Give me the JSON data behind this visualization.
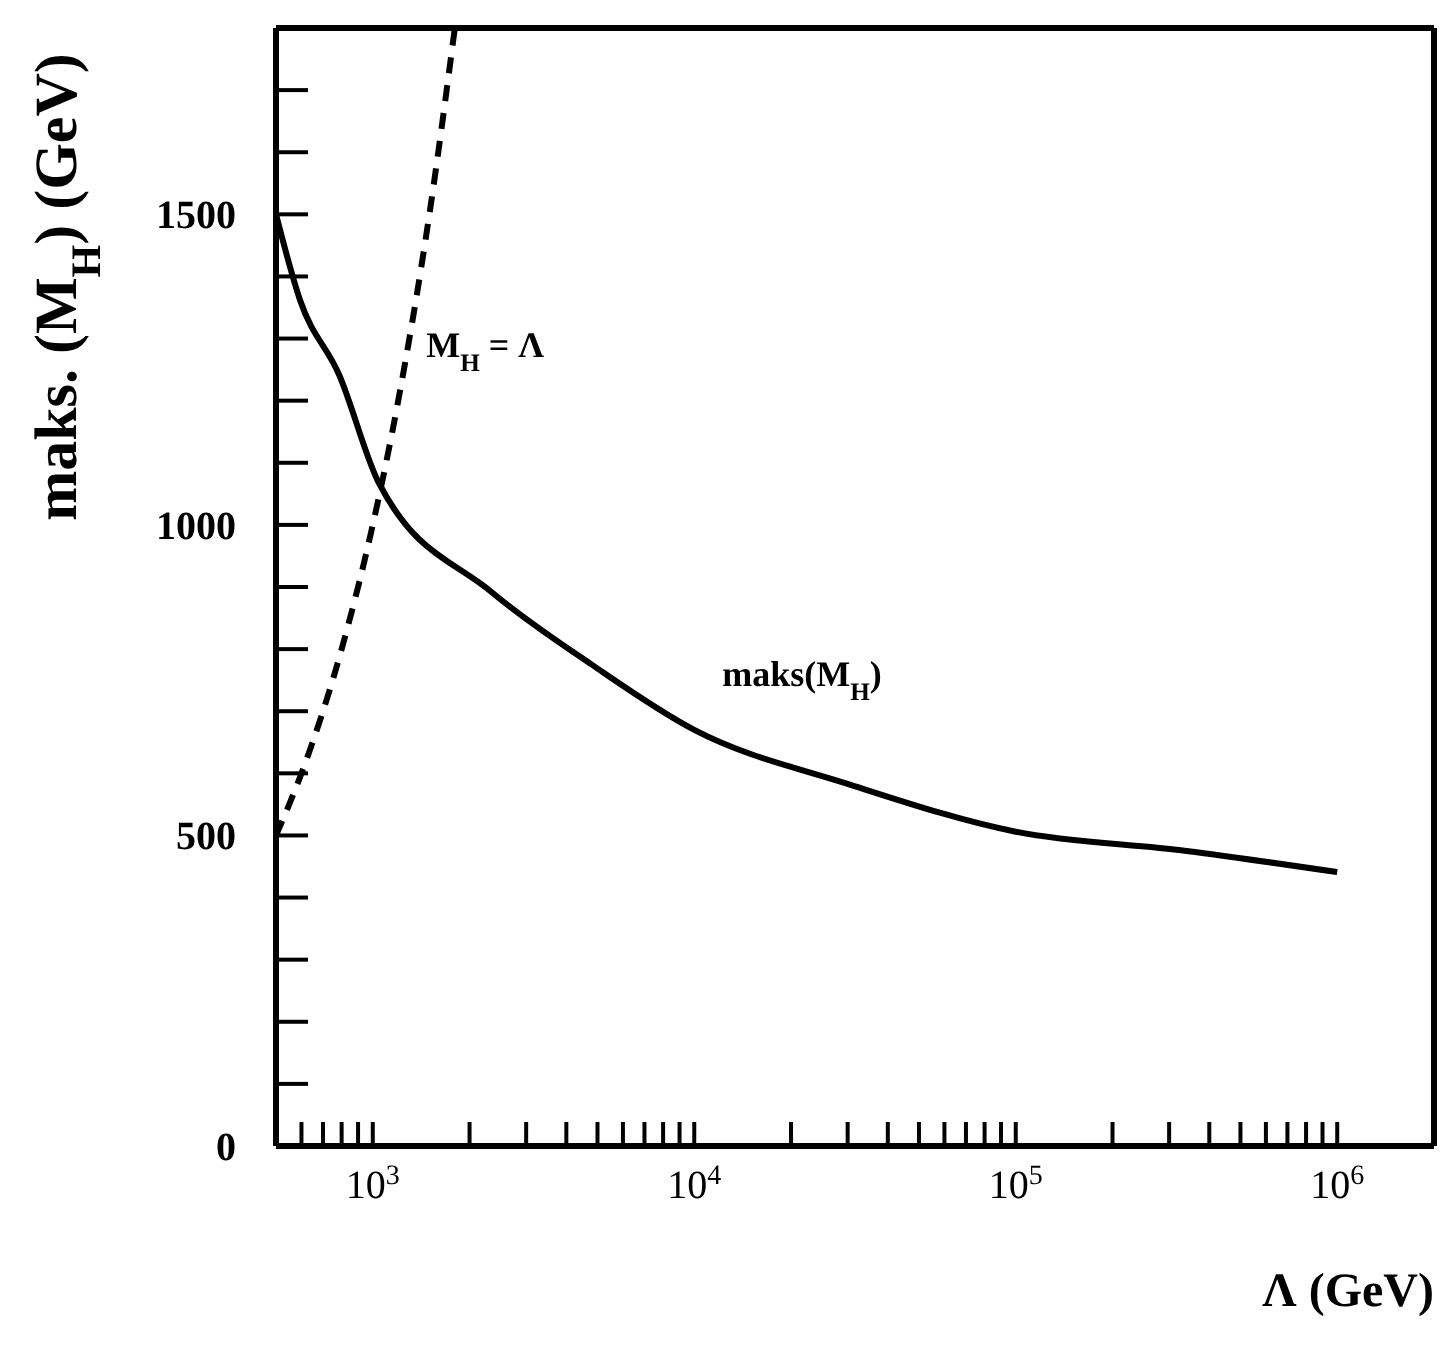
{
  "chart_data": {
    "type": "line",
    "xlabel": "Λ (GeV)",
    "ylabel": "maks. (M$_{H}$) (GeV)",
    "log": "x",
    "legend": false,
    "marker": "none",
    "xlim": [
      500,
      2000000
    ],
    "ylim": [
      0,
      1800
    ],
    "xticks": [
      {
        "value": 600,
        "label": null
      },
      {
        "value": 700,
        "label": null
      },
      {
        "value": 800,
        "label": null
      },
      {
        "value": 900,
        "label": null
      },
      {
        "value": 1000,
        "label": "10$^{3}$"
      },
      {
        "value": 2000,
        "label": null
      },
      {
        "value": 3000,
        "label": null
      },
      {
        "value": 4000,
        "label": null
      },
      {
        "value": 5000,
        "label": null
      },
      {
        "value": 6000,
        "label": null
      },
      {
        "value": 7000,
        "label": null
      },
      {
        "value": 8000,
        "label": null
      },
      {
        "value": 9000,
        "label": null
      },
      {
        "value": 10000,
        "label": "10$^{4}$"
      },
      {
        "value": 20000,
        "label": null
      },
      {
        "value": 30000,
        "label": null
      },
      {
        "value": 40000,
        "label": null
      },
      {
        "value": 50000,
        "label": null
      },
      {
        "value": 60000,
        "label": null
      },
      {
        "value": 70000,
        "label": null
      },
      {
        "value": 80000,
        "label": null
      },
      {
        "value": 90000,
        "label": null
      },
      {
        "value": 100000,
        "label": "10$^{5}$"
      },
      {
        "value": 200000,
        "label": null
      },
      {
        "value": 300000,
        "label": null
      },
      {
        "value": 400000,
        "label": null
      },
      {
        "value": 500000,
        "label": null
      },
      {
        "value": 600000,
        "label": null
      },
      {
        "value": 700000,
        "label": null
      },
      {
        "value": 800000,
        "label": null
      },
      {
        "value": 900000,
        "label": null
      },
      {
        "value": 1000000,
        "label": "10$^{6}$"
      }
    ],
    "yticks": [
      0,
      {
        "value": 100,
        "label": null
      },
      {
        "value": 200,
        "label": null
      },
      {
        "value": 300,
        "label": null
      },
      {
        "value": 400,
        "label": null
      },
      500,
      {
        "value": 600,
        "label": null
      },
      {
        "value": 700,
        "label": null
      },
      {
        "value": 800,
        "label": null
      },
      {
        "value": 900,
        "label": null
      },
      1000,
      {
        "value": 1100,
        "label": null
      },
      {
        "value": 1200,
        "label": null
      },
      {
        "value": 1300,
        "label": null
      },
      {
        "value": 1400,
        "label": null
      },
      1500,
      {
        "value": 1600,
        "label": null
      },
      {
        "value": 1700,
        "label": null
      }
    ],
    "series": [
      {
        "name": "maks(M$_{H}$)",
        "color": "#000000",
        "line_style": "solid",
        "x": [
          500,
          593,
          787,
          1043,
          2340,
          4800,
          10000,
          30000,
          100000,
          340000,
          1000000
        ],
        "values": [
          1500,
          1363,
          1241,
          1068,
          892,
          775,
          670,
          583,
          506,
          475,
          441
        ]
      },
      {
        "name": "M$_{H}$ = Λ",
        "color": "#000000",
        "line_style": "dashed",
        "x": [
          500,
          600,
          800,
          1000,
          1200,
          1500,
          1800
        ],
        "values": [
          500,
          600,
          800,
          1000,
          1200,
          1500,
          1800
        ]
      }
    ]
  }
}
